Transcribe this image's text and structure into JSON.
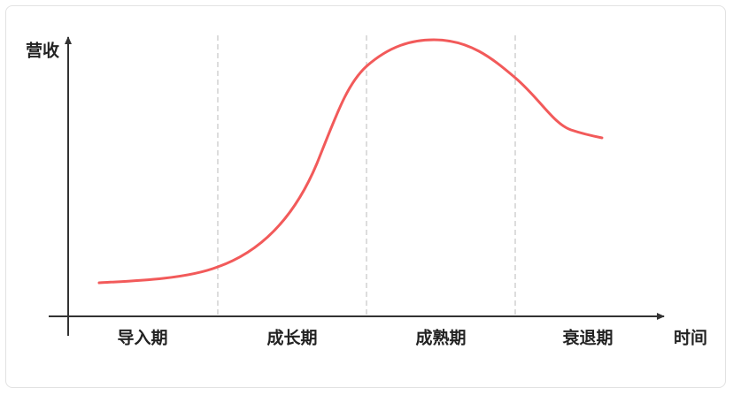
{
  "y_axis_label": "营收",
  "x_axis_label": "时间",
  "stages": [
    "导入期",
    "成长期",
    "成熟期",
    "衰退期"
  ]
}
